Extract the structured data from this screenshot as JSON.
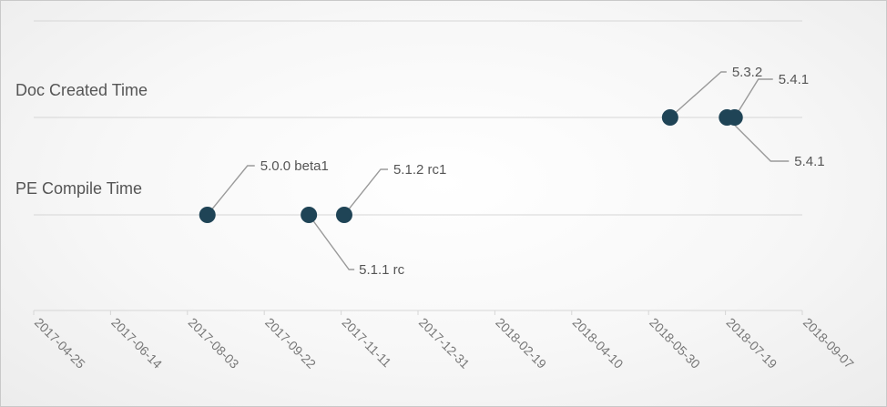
{
  "colors": {
    "point": "#1f4456",
    "grid": "#d6d6d6",
    "text": "#555555"
  },
  "chart_data": {
    "type": "scatter",
    "categories": [
      "Doc Created Time",
      "PE Compile Time"
    ],
    "x_ticks": [
      "2017-04-25",
      "2017-06-14",
      "2017-08-03",
      "2017-09-22",
      "2017-11-11",
      "2017-12-31",
      "2018-02-19",
      "2018-04-10",
      "2018-05-30",
      "2018-07-19",
      "2018-09-07"
    ],
    "xlim": [
      "2017-04-25",
      "2018-09-07"
    ],
    "grid": true,
    "points": [
      {
        "category": "PE Compile Time",
        "x": "2017-08-16",
        "label": "5.0.0 beta1"
      },
      {
        "category": "PE Compile Time",
        "x": "2017-10-21",
        "label": "5.1.1 rc"
      },
      {
        "category": "PE Compile Time",
        "x": "2017-11-13",
        "label": "5.1.2 rc1"
      },
      {
        "category": "Doc Created Time",
        "x": "2018-06-13",
        "label": "5.3.2"
      },
      {
        "category": "Doc Created Time",
        "x": "2018-07-20",
        "label": "5.4.1"
      },
      {
        "category": "Doc Created Time",
        "x": "2018-07-25",
        "label": "5.4.1"
      }
    ]
  }
}
